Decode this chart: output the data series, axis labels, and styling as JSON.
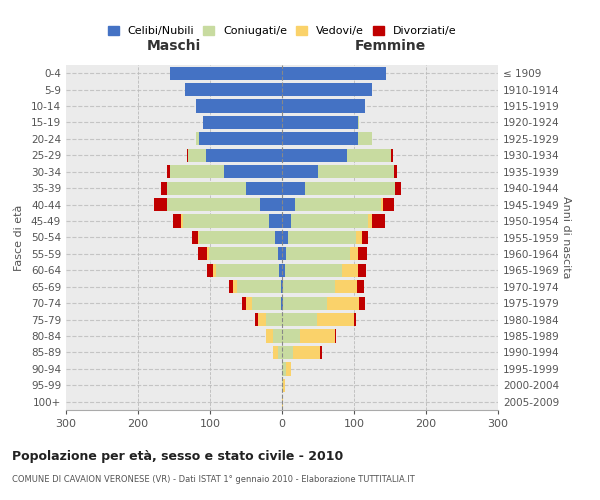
{
  "age_groups": [
    "0-4",
    "5-9",
    "10-14",
    "15-19",
    "20-24",
    "25-29",
    "30-34",
    "35-39",
    "40-44",
    "45-49",
    "50-54",
    "55-59",
    "60-64",
    "65-69",
    "70-74",
    "75-79",
    "80-84",
    "85-89",
    "90-94",
    "95-99",
    "100+"
  ],
  "birth_years": [
    "2005-2009",
    "2000-2004",
    "1995-1999",
    "1990-1994",
    "1985-1989",
    "1980-1984",
    "1975-1979",
    "1970-1974",
    "1965-1969",
    "1960-1964",
    "1955-1959",
    "1950-1954",
    "1945-1949",
    "1940-1944",
    "1935-1939",
    "1930-1934",
    "1925-1929",
    "1920-1924",
    "1915-1919",
    "1910-1914",
    "≤ 1909"
  ],
  "males": {
    "celibi": [
      155,
      135,
      120,
      110,
      115,
      105,
      80,
      50,
      30,
      18,
      10,
      6,
      4,
      2,
      2,
      0,
      0,
      0,
      0,
      0,
      0
    ],
    "coniugati": [
      0,
      0,
      0,
      0,
      5,
      25,
      75,
      110,
      130,
      120,
      105,
      95,
      88,
      60,
      40,
      22,
      12,
      5,
      0,
      0,
      0
    ],
    "vedovi": [
      0,
      0,
      0,
      0,
      0,
      0,
      0,
      0,
      0,
      2,
      2,
      3,
      4,
      6,
      8,
      12,
      10,
      8,
      0,
      0,
      0
    ],
    "divorziati": [
      0,
      0,
      0,
      0,
      0,
      2,
      5,
      8,
      18,
      12,
      8,
      12,
      8,
      5,
      5,
      3,
      0,
      0,
      0,
      0,
      0
    ]
  },
  "females": {
    "nubili": [
      145,
      125,
      115,
      105,
      105,
      90,
      50,
      32,
      18,
      12,
      8,
      6,
      4,
      2,
      2,
      0,
      0,
      0,
      0,
      0,
      0
    ],
    "coniugate": [
      0,
      0,
      0,
      2,
      20,
      62,
      105,
      125,
      120,
      108,
      95,
      88,
      80,
      72,
      60,
      48,
      25,
      15,
      5,
      2,
      0
    ],
    "vedove": [
      0,
      0,
      0,
      0,
      0,
      0,
      0,
      0,
      2,
      5,
      8,
      12,
      22,
      30,
      45,
      52,
      48,
      38,
      8,
      2,
      2
    ],
    "divorziate": [
      0,
      0,
      0,
      0,
      0,
      2,
      5,
      8,
      15,
      18,
      8,
      12,
      10,
      10,
      8,
      3,
      2,
      2,
      0,
      0,
      0
    ]
  },
  "colors": {
    "celibi": "#4472c4",
    "coniugati": "#c8dba0",
    "vedovi": "#fad26a",
    "divorziati": "#c00000"
  },
  "legend_labels": [
    "Celibi/Nubili",
    "Coniugati/e",
    "Vedovi/e",
    "Divorziati/e"
  ],
  "title": "Popolazione per età, sesso e stato civile - 2010",
  "subtitle": "COMUNE DI CAVAION VERONESE (VR) - Dati ISTAT 1° gennaio 2010 - Elaborazione TUTTITALIA.IT",
  "ylabel_left": "Fasce di età",
  "ylabel_right": "Anni di nascita",
  "xlabel_left": "Maschi",
  "xlabel_right": "Femmine",
  "xlim": 300,
  "background_color": "#ffffff",
  "grid_color": "#cccccc"
}
